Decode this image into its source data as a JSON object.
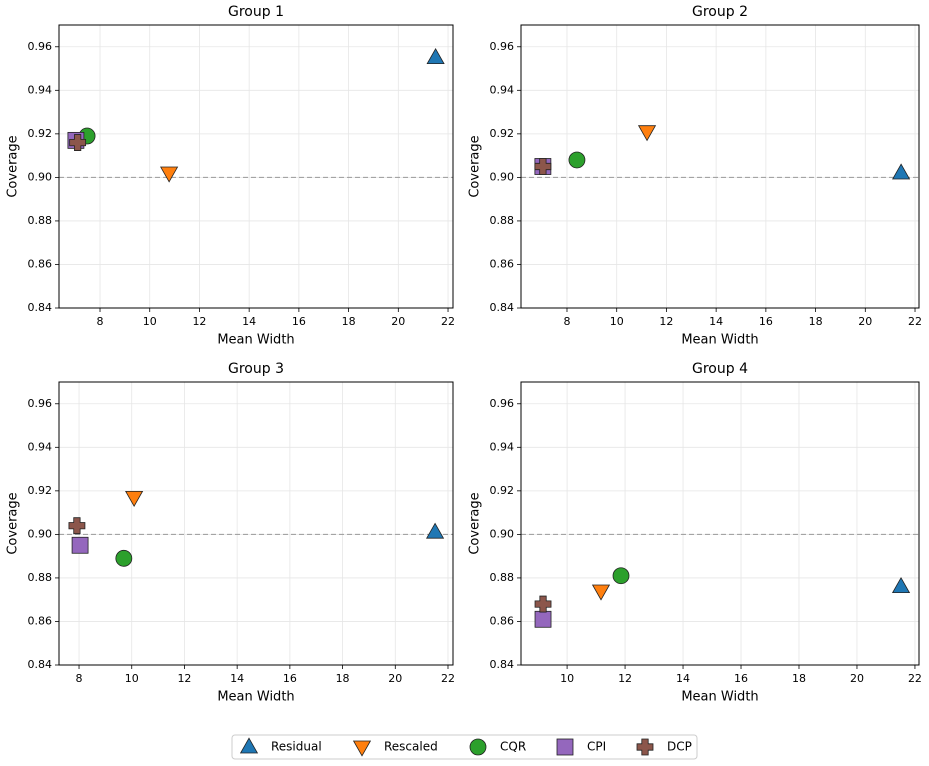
{
  "chart_data": [
    {
      "type": "scatter",
      "title": "Group 1",
      "xlabel": "Mean Width",
      "ylabel": "Coverage",
      "xlim": [
        6.35,
        22.2
      ],
      "ylim": [
        0.84,
        0.97
      ],
      "xticks": [
        8,
        10,
        12,
        14,
        16,
        18,
        20,
        22
      ],
      "yticks": [
        0.84,
        0.86,
        0.88,
        {
          "value": 0.9,
          "label": "0.90"
        },
        0.92,
        0.94,
        0.96
      ],
      "grid": true,
      "hline": 0.9,
      "series": [
        {
          "name": "Residual",
          "color": "#1f77b4",
          "marker": "^",
          "x": [
            21.5
          ],
          "values": [
            0.955
          ]
        },
        {
          "name": "Rescaled",
          "color": "#ff7f0e",
          "marker": "v",
          "x": [
            10.78
          ],
          "values": [
            0.902
          ]
        },
        {
          "name": "CQR",
          "color": "#2ca02c",
          "marker": "o",
          "x": [
            7.48
          ],
          "values": [
            0.919
          ]
        },
        {
          "name": "CPI",
          "color": "#9467bd",
          "marker": "s",
          "x": [
            7.03
          ],
          "values": [
            0.917
          ]
        },
        {
          "name": "DCP",
          "color": "#8c564b",
          "marker": "P",
          "x": [
            7.1
          ],
          "values": [
            0.916
          ]
        }
      ]
    },
    {
      "type": "scatter",
      "title": "Group 2",
      "xlabel": "Mean Width",
      "ylabel": "Coverage",
      "xlim": [
        6.15,
        22.16
      ],
      "ylim": [
        0.84,
        0.97
      ],
      "xticks": [
        8,
        10,
        12,
        14,
        16,
        18,
        20,
        22
      ],
      "yticks": [
        0.84,
        0.86,
        0.88,
        {
          "value": 0.9,
          "label": "0.90"
        },
        0.92,
        0.94,
        0.96
      ],
      "grid": true,
      "hline": 0.9,
      "series": [
        {
          "name": "Residual",
          "color": "#1f77b4",
          "marker": "^",
          "x": [
            21.44
          ],
          "values": [
            0.902
          ]
        },
        {
          "name": "Rescaled",
          "color": "#ff7f0e",
          "marker": "v",
          "x": [
            11.22
          ],
          "values": [
            0.921
          ]
        },
        {
          "name": "CQR",
          "color": "#2ca02c",
          "marker": "o",
          "x": [
            8.4
          ],
          "values": [
            0.908
          ]
        },
        {
          "name": "CPI",
          "color": "#9467bd",
          "marker": "s",
          "x": [
            7.03
          ],
          "values": [
            0.905
          ]
        },
        {
          "name": "DCP",
          "color": "#8c564b",
          "marker": "P",
          "x": [
            7.03
          ],
          "values": [
            0.905
          ]
        }
      ]
    },
    {
      "type": "scatter",
      "title": "Group 3",
      "xlabel": "Mean Width",
      "ylabel": "Coverage",
      "xlim": [
        7.24,
        22.19
      ],
      "ylim": [
        0.84,
        0.97
      ],
      "xticks": [
        8,
        10,
        12,
        14,
        16,
        18,
        20,
        22
      ],
      "yticks": [
        0.84,
        0.86,
        0.88,
        {
          "value": 0.9,
          "label": "0.90"
        },
        0.92,
        0.94,
        0.96
      ],
      "grid": true,
      "hline": 0.9,
      "series": [
        {
          "name": "Residual",
          "color": "#1f77b4",
          "marker": "^",
          "x": [
            21.51
          ],
          "values": [
            0.901
          ]
        },
        {
          "name": "Rescaled",
          "color": "#ff7f0e",
          "marker": "v",
          "x": [
            10.09
          ],
          "values": [
            0.917
          ]
        },
        {
          "name": "CQR",
          "color": "#2ca02c",
          "marker": "o",
          "x": [
            9.7
          ],
          "values": [
            0.889
          ]
        },
        {
          "name": "CPI",
          "color": "#9467bd",
          "marker": "s",
          "x": [
            8.04
          ],
          "values": [
            0.895
          ]
        },
        {
          "name": "DCP",
          "color": "#8c564b",
          "marker": "P",
          "x": [
            7.92
          ],
          "values": [
            0.904
          ]
        }
      ]
    },
    {
      "type": "scatter",
      "title": "Group 4",
      "xlabel": "Mean Width",
      "ylabel": "Coverage",
      "xlim": [
        8.41,
        22.14
      ],
      "ylim": [
        0.84,
        0.97
      ],
      "xticks": [
        10,
        12,
        14,
        16,
        18,
        20,
        22
      ],
      "yticks": [
        0.84,
        0.86,
        0.88,
        {
          "value": 0.9,
          "label": "0.90"
        },
        0.92,
        0.94,
        0.96
      ],
      "grid": true,
      "hline": 0.9,
      "series": [
        {
          "name": "Residual",
          "color": "#1f77b4",
          "marker": "^",
          "x": [
            21.52
          ],
          "values": [
            0.876
          ]
        },
        {
          "name": "Rescaled",
          "color": "#ff7f0e",
          "marker": "v",
          "x": [
            11.17
          ],
          "values": [
            0.874
          ]
        },
        {
          "name": "CQR",
          "color": "#2ca02c",
          "marker": "o",
          "x": [
            11.86
          ],
          "values": [
            0.881
          ]
        },
        {
          "name": "CPI",
          "color": "#9467bd",
          "marker": "s",
          "x": [
            9.17
          ],
          "values": [
            0.861
          ]
        },
        {
          "name": "DCP",
          "color": "#8c564b",
          "marker": "P",
          "x": [
            9.17
          ],
          "values": [
            0.868
          ]
        }
      ]
    }
  ]
}
